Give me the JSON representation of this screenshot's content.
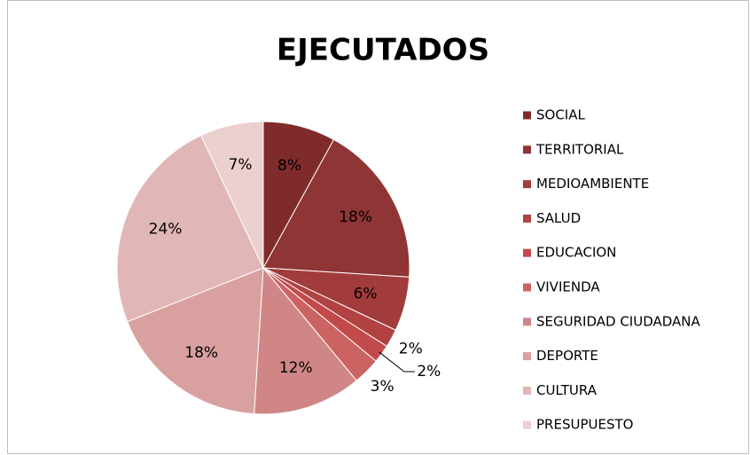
{
  "chart_data": {
    "type": "pie",
    "title": "EJECUTADOS",
    "categories": [
      "SOCIAL",
      "TERRITORIAL",
      "MEDIOAMBIENTE",
      "SALUD",
      "EDUCACION",
      "VIVIENDA",
      "SEGURIDAD CIUDADANA",
      "DEPORTE",
      "CULTURA",
      "PRESUPUESTO"
    ],
    "values": [
      8,
      18,
      6,
      2,
      2,
      3,
      12,
      18,
      24,
      7
    ],
    "value_labels": [
      "8%",
      "18%",
      "6%",
      "2%",
      "2%",
      "3%",
      "12%",
      "18%",
      "24%",
      "7%"
    ],
    "colors": [
      "#7f2b2b",
      "#8f3535",
      "#a23c3c",
      "#b14242",
      "#c24a4a",
      "#cc6363",
      "#d08686",
      "#d9a0a0",
      "#e1b6b6",
      "#eccfcf"
    ],
    "legend": "right"
  }
}
